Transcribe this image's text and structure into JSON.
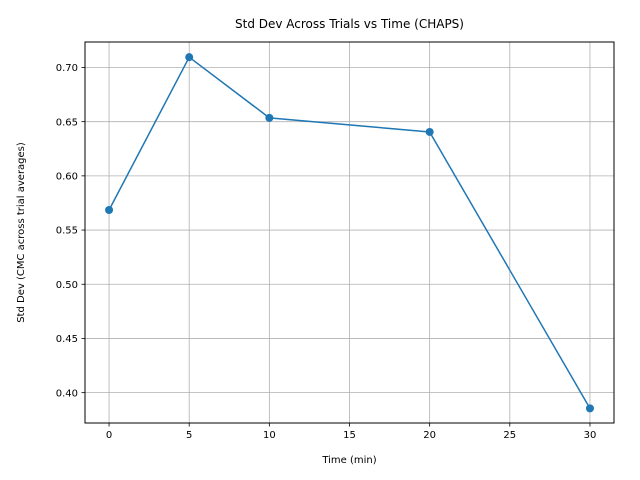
{
  "chart_data": {
    "type": "line",
    "title": "Std Dev Across Trials vs Time (CHAPS)",
    "xlabel": "Time (min)",
    "ylabel": "Std Dev (CMC across trial averages)",
    "x": [
      0,
      5,
      10,
      20,
      30
    ],
    "series": [
      {
        "values": [
          0.5685,
          0.7095,
          0.6535,
          0.6405,
          0.3855
        ]
      }
    ],
    "xlim": [
      -1.5,
      31.5
    ],
    "ylim": [
      0.372,
      0.7235
    ],
    "xticks": [
      0,
      5,
      10,
      15,
      20,
      25,
      30
    ],
    "yticks": [
      0.4,
      0.45,
      0.5,
      0.55,
      0.6,
      0.65,
      0.7
    ],
    "ytick_labels": [
      "0.40",
      "0.45",
      "0.50",
      "0.55",
      "0.60",
      "0.65",
      "0.70"
    ],
    "grid": true,
    "legend": "none",
    "marker": "circle",
    "line_color": "#1f77b4",
    "grid_color": "#b0b0b0"
  }
}
